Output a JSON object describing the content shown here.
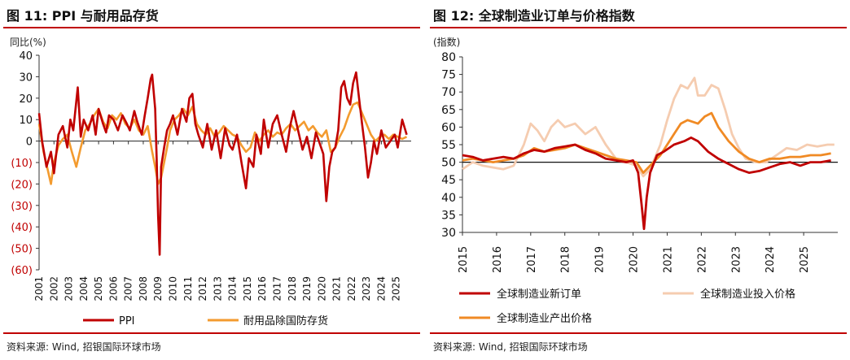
{
  "left": {
    "title": "图 11: PPI 与耐用品存货",
    "source": "资料来源: Wind, 招银国际环球市场",
    "chart_data": {
      "type": "line",
      "ylabel": "同比(%)",
      "ylim": [
        -60,
        40
      ],
      "ytick_labels": [
        "40",
        "30",
        "20",
        "10",
        "0",
        "(10)",
        "(20)",
        "(30)",
        "(40)",
        "(50)",
        "(60)"
      ],
      "ytick_values": [
        40,
        30,
        20,
        10,
        0,
        -10,
        -20,
        -30,
        -40,
        -50,
        -60
      ],
      "negative_label_color": "#c00000",
      "xlim": [
        2001,
        2026
      ],
      "xtick_labels": [
        "2001",
        "2002",
        "2003",
        "2004",
        "2005",
        "2006",
        "2007",
        "2008",
        "2009",
        "2010",
        "2011",
        "2012",
        "2013",
        "2014",
        "2015",
        "2016",
        "2017",
        "2018",
        "2019",
        "2020",
        "2021",
        "2022",
        "2023",
        "2024",
        "2025"
      ],
      "legend_position": "bottom",
      "series": [
        {
          "name": "PPI",
          "color": "#c00000",
          "x": [
            2001.0,
            2001.2,
            2001.5,
            2001.8,
            2002.0,
            2002.3,
            2002.6,
            2002.9,
            2003.1,
            2003.3,
            2003.6,
            2003.8,
            2004.0,
            2004.3,
            2004.6,
            2004.8,
            2005.0,
            2005.3,
            2005.5,
            2005.7,
            2006.0,
            2006.3,
            2006.6,
            2006.9,
            2007.1,
            2007.4,
            2007.6,
            2007.9,
            2008.1,
            2008.3,
            2008.5,
            2008.6,
            2008.8,
            2008.9,
            2009.0,
            2009.1,
            2009.2,
            2009.4,
            2009.6,
            2009.8,
            2010.0,
            2010.3,
            2010.6,
            2010.9,
            2011.1,
            2011.3,
            2011.5,
            2011.7,
            2012.0,
            2012.3,
            2012.6,
            2012.9,
            2013.2,
            2013.5,
            2013.8,
            2014.0,
            2014.3,
            2014.6,
            2014.9,
            2015.1,
            2015.4,
            2015.6,
            2015.9,
            2016.1,
            2016.4,
            2016.7,
            2017.0,
            2017.3,
            2017.6,
            2017.9,
            2018.1,
            2018.4,
            2018.7,
            2019.0,
            2019.3,
            2019.6,
            2019.9,
            2020.1,
            2020.3,
            2020.5,
            2020.7,
            2020.9,
            2021.1,
            2021.3,
            2021.5,
            2021.7,
            2021.9,
            2022.1,
            2022.3,
            2022.5,
            2022.7,
            2022.9,
            2023.1,
            2023.3,
            2023.5,
            2023.7,
            2024.0,
            2024.3,
            2024.6,
            2024.9,
            2025.1,
            2025.4,
            2025.7
          ],
          "values": [
            13,
            0,
            -12,
            -5,
            -15,
            3,
            7,
            -3,
            10,
            5,
            25,
            2,
            10,
            5,
            12,
            3,
            15,
            8,
            4,
            12,
            10,
            5,
            12,
            8,
            5,
            14,
            9,
            3,
            12,
            20,
            29,
            31,
            15,
            -8,
            -35,
            -53,
            -12,
            -3,
            5,
            8,
            12,
            3,
            15,
            9,
            20,
            22,
            8,
            3,
            -3,
            8,
            -4,
            5,
            -8,
            6,
            -2,
            -4,
            3,
            -10,
            -22,
            -8,
            -12,
            3,
            -6,
            10,
            -3,
            8,
            12,
            3,
            -5,
            8,
            14,
            5,
            -4,
            2,
            -8,
            4,
            -2,
            -6,
            -28,
            -12,
            -5,
            -3,
            5,
            25,
            28,
            20,
            17,
            27,
            32,
            20,
            8,
            -3,
            -17,
            -10,
            0,
            -6,
            5,
            -3,
            0,
            3,
            -3,
            10,
            3
          ]
        },
        {
          "name": "耐用品除国防存货",
          "color": "#f39b2f",
          "x": [
            2001.0,
            2001.3,
            2001.6,
            2001.8,
            2002.0,
            2002.3,
            2002.6,
            2002.9,
            2003.2,
            2003.5,
            2003.8,
            2004.1,
            2004.4,
            2004.7,
            2005.0,
            2005.3,
            2005.6,
            2005.9,
            2006.2,
            2006.5,
            2006.8,
            2007.1,
            2007.4,
            2007.7,
            2008.0,
            2008.3,
            2008.6,
            2008.8,
            2009.0,
            2009.2,
            2009.4,
            2009.6,
            2009.8,
            2010.1,
            2010.4,
            2010.7,
            2011.0,
            2011.3,
            2011.6,
            2011.9,
            2012.2,
            2012.5,
            2012.8,
            2013.1,
            2013.4,
            2013.7,
            2014.0,
            2014.3,
            2014.6,
            2014.9,
            2015.2,
            2015.5,
            2015.8,
            2016.1,
            2016.4,
            2016.7,
            2017.0,
            2017.3,
            2017.6,
            2017.9,
            2018.2,
            2018.5,
            2018.8,
            2019.1,
            2019.4,
            2019.7,
            2020.0,
            2020.3,
            2020.6,
            2020.9,
            2021.2,
            2021.5,
            2021.8,
            2022.1,
            2022.4,
            2022.7,
            2023.0,
            2023.3,
            2023.6,
            2023.9,
            2024.2,
            2024.5,
            2024.8,
            2025.1,
            2025.4,
            2025.7
          ],
          "values": [
            8,
            -5,
            -14,
            -20,
            -10,
            -2,
            1,
            3,
            -5,
            -12,
            -3,
            5,
            8,
            12,
            15,
            9,
            6,
            12,
            10,
            13,
            8,
            6,
            10,
            5,
            3,
            7,
            -5,
            -12,
            -20,
            -17,
            -10,
            -3,
            5,
            10,
            12,
            15,
            12,
            16,
            8,
            5,
            3,
            6,
            2,
            4,
            7,
            5,
            3,
            2,
            -2,
            -5,
            -3,
            4,
            0,
            3,
            5,
            2,
            4,
            3,
            6,
            8,
            5,
            7,
            9,
            5,
            7,
            4,
            2,
            5,
            -5,
            -3,
            2,
            6,
            12,
            17,
            18,
            13,
            8,
            3,
            0,
            2,
            3,
            1,
            3,
            2,
            1,
            2
          ]
        }
      ]
    }
  },
  "right": {
    "title": "图 12: 全球制造业订单与价格指数",
    "source": "资料来源: Wind, 招银国际环球市场",
    "chart_data": {
      "type": "line",
      "ylabel": "(指数)",
      "ylim": [
        30,
        80
      ],
      "ytick_values": [
        30,
        35,
        40,
        45,
        50,
        55,
        60,
        65,
        70,
        75,
        80
      ],
      "xlim": [
        2015,
        2026
      ],
      "xtick_labels": [
        "2015",
        "2016",
        "2017",
        "2018",
        "2019",
        "2020",
        "2021",
        "2022",
        "2023",
        "2024",
        "2025"
      ],
      "reference_line": 50,
      "legend_position": "bottom",
      "series": [
        {
          "name": "全球制造业新订单",
          "color": "#c00000",
          "x": [
            2015.0,
            2015.3,
            2015.6,
            2015.9,
            2016.2,
            2016.5,
            2016.8,
            2017.1,
            2017.4,
            2017.7,
            2018.0,
            2018.3,
            2018.6,
            2018.9,
            2019.2,
            2019.5,
            2019.8,
            2020.0,
            2020.15,
            2020.25,
            2020.32,
            2020.4,
            2020.5,
            2020.7,
            2020.9,
            2021.2,
            2021.5,
            2021.7,
            2021.9,
            2022.2,
            2022.5,
            2022.8,
            2023.1,
            2023.4,
            2023.7,
            2024.0,
            2024.3,
            2024.6,
            2024.9,
            2025.2,
            2025.5,
            2025.8
          ],
          "values": [
            52,
            51.5,
            50.5,
            51,
            51.5,
            51,
            52.5,
            53.5,
            53,
            54,
            54.5,
            55,
            53.5,
            52.5,
            51,
            50.5,
            50,
            50.5,
            47,
            38,
            31,
            40,
            47,
            52,
            53,
            55,
            56,
            57,
            56,
            53,
            51,
            49.5,
            48,
            47,
            47.5,
            48.5,
            49.5,
            50,
            49,
            50,
            50,
            50.5
          ]
        },
        {
          "name": "全球制造业投入价格",
          "color": "#f5ccb0",
          "x": [
            2015.0,
            2015.3,
            2015.6,
            2015.9,
            2016.2,
            2016.5,
            2016.8,
            2017.0,
            2017.2,
            2017.4,
            2017.6,
            2017.8,
            2018.0,
            2018.3,
            2018.6,
            2018.9,
            2019.2,
            2019.5,
            2019.8,
            2020.1,
            2020.3,
            2020.5,
            2020.8,
            2021.0,
            2021.2,
            2021.4,
            2021.6,
            2021.8,
            2021.9,
            2022.1,
            2022.3,
            2022.5,
            2022.7,
            2022.9,
            2023.1,
            2023.3,
            2023.6,
            2023.9,
            2024.2,
            2024.5,
            2024.8,
            2025.1,
            2025.4,
            2025.7,
            2025.9
          ],
          "values": [
            48,
            50,
            49,
            48.5,
            48,
            49,
            55,
            61,
            59,
            56,
            60,
            62,
            60,
            61,
            58,
            60,
            55,
            51,
            50,
            49,
            46,
            48,
            55,
            62,
            68,
            72,
            71,
            74,
            69,
            69,
            72,
            71,
            65,
            58,
            54,
            51,
            50,
            50,
            52,
            54,
            53.5,
            55,
            54.5,
            55,
            55
          ]
        },
        {
          "name": "全球制造业产出价格",
          "color": "#f08a24",
          "x": [
            2015.0,
            2015.3,
            2015.6,
            2015.9,
            2016.2,
            2016.5,
            2016.8,
            2017.1,
            2017.4,
            2017.7,
            2018.0,
            2018.3,
            2018.6,
            2018.9,
            2019.2,
            2019.5,
            2019.8,
            2020.1,
            2020.3,
            2020.5,
            2020.8,
            2021.0,
            2021.2,
            2021.4,
            2021.6,
            2021.9,
            2022.1,
            2022.3,
            2022.5,
            2022.8,
            2023.1,
            2023.4,
            2023.7,
            2024.0,
            2024.3,
            2024.6,
            2024.9,
            2025.2,
            2025.5,
            2025.8
          ],
          "values": [
            50.5,
            51,
            50.5,
            50,
            50.5,
            51,
            52,
            54,
            53,
            53.5,
            54,
            55,
            54,
            53,
            52,
            51,
            50.5,
            50,
            47,
            49,
            52,
            55,
            58,
            61,
            62,
            61,
            63,
            64,
            60,
            56,
            53,
            51,
            50,
            51,
            51,
            51.5,
            51.5,
            52,
            52,
            52.5
          ]
        }
      ]
    }
  }
}
